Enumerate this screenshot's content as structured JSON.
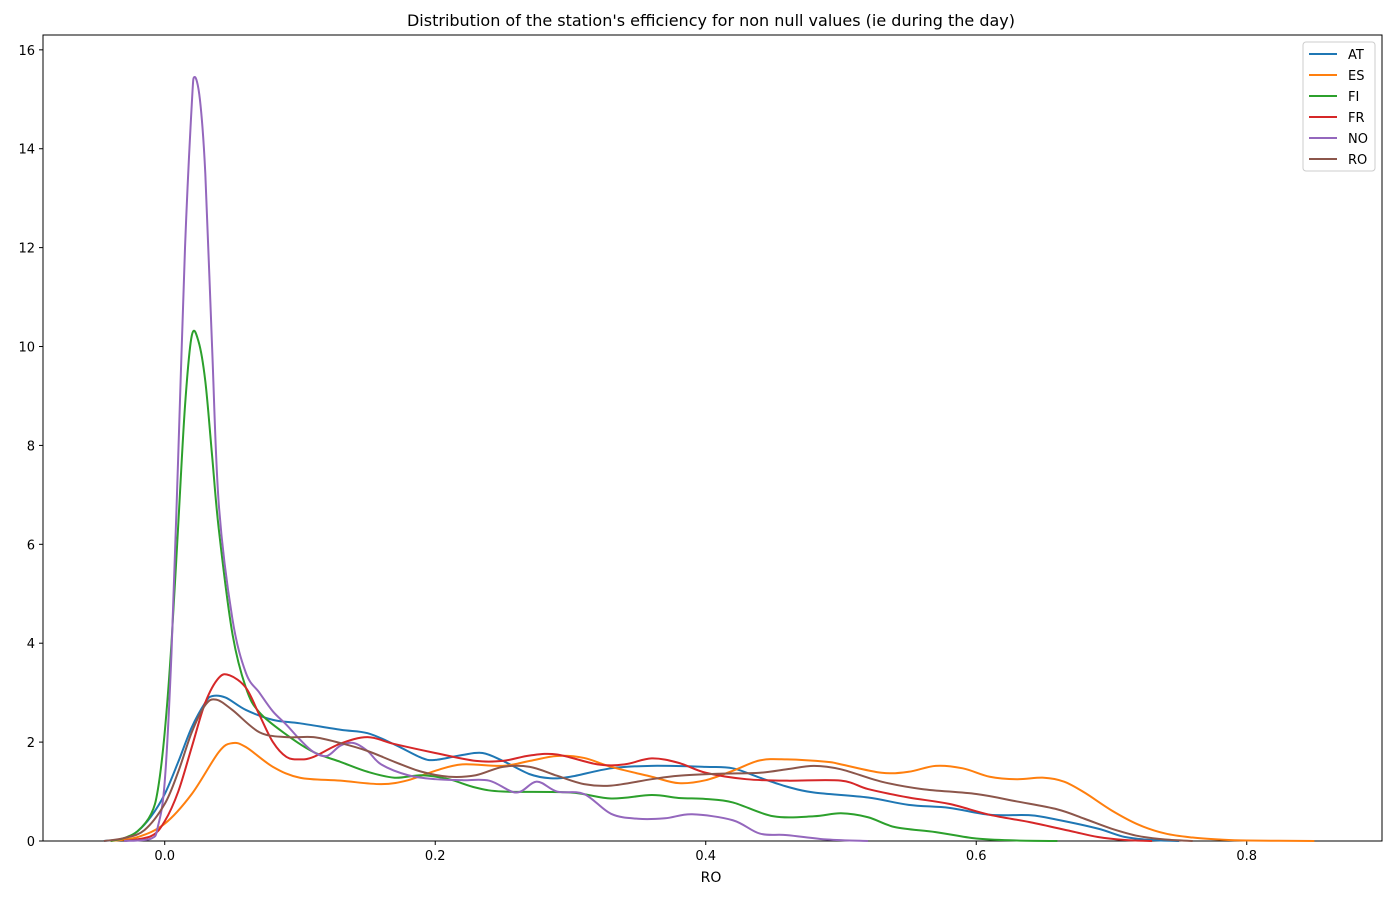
{
  "chart_data": {
    "type": "line",
    "title": "Distribution of the station's efficiency for non null values (ie during the day)",
    "xlabel": "RO",
    "ylabel": "",
    "xlim": [
      -0.09,
      0.9
    ],
    "ylim": [
      0,
      16.3
    ],
    "xticks": [
      0.0,
      0.2,
      0.4,
      0.6,
      0.8
    ],
    "xtick_labels": [
      "0.0",
      "0.2",
      "0.4",
      "0.6",
      "0.8"
    ],
    "yticks": [
      0,
      2,
      4,
      6,
      8,
      10,
      12,
      14,
      16
    ],
    "ytick_labels": [
      "0",
      "2",
      "4",
      "6",
      "8",
      "10",
      "12",
      "14",
      "16"
    ],
    "grid": false,
    "legend_position": "top-right",
    "series": [
      {
        "name": "AT",
        "color": "#1f77b4",
        "points": [
          [
            -0.045,
            0
          ],
          [
            -0.03,
            0.05
          ],
          [
            -0.02,
            0.2
          ],
          [
            -0.01,
            0.5
          ],
          [
            0.0,
            0.95
          ],
          [
            0.01,
            1.6
          ],
          [
            0.02,
            2.3
          ],
          [
            0.03,
            2.8
          ],
          [
            0.035,
            2.93
          ],
          [
            0.045,
            2.9
          ],
          [
            0.06,
            2.65
          ],
          [
            0.08,
            2.45
          ],
          [
            0.1,
            2.38
          ],
          [
            0.13,
            2.25
          ],
          [
            0.15,
            2.18
          ],
          [
            0.17,
            1.95
          ],
          [
            0.19,
            1.68
          ],
          [
            0.2,
            1.64
          ],
          [
            0.22,
            1.74
          ],
          [
            0.235,
            1.78
          ],
          [
            0.25,
            1.62
          ],
          [
            0.27,
            1.35
          ],
          [
            0.285,
            1.27
          ],
          [
            0.3,
            1.3
          ],
          [
            0.33,
            1.47
          ],
          [
            0.36,
            1.52
          ],
          [
            0.4,
            1.5
          ],
          [
            0.42,
            1.47
          ],
          [
            0.44,
            1.28
          ],
          [
            0.46,
            1.1
          ],
          [
            0.48,
            0.98
          ],
          [
            0.52,
            0.88
          ],
          [
            0.55,
            0.73
          ],
          [
            0.58,
            0.67
          ],
          [
            0.61,
            0.53
          ],
          [
            0.64,
            0.52
          ],
          [
            0.66,
            0.43
          ],
          [
            0.69,
            0.25
          ],
          [
            0.71,
            0.08
          ],
          [
            0.73,
            0.02
          ],
          [
            0.75,
            0
          ]
        ]
      },
      {
        "name": "ES",
        "color": "#ff7f0e",
        "points": [
          [
            -0.04,
            0
          ],
          [
            -0.02,
            0.08
          ],
          [
            0.0,
            0.35
          ],
          [
            0.02,
            0.95
          ],
          [
            0.04,
            1.8
          ],
          [
            0.05,
            1.98
          ],
          [
            0.06,
            1.9
          ],
          [
            0.08,
            1.5
          ],
          [
            0.1,
            1.28
          ],
          [
            0.13,
            1.22
          ],
          [
            0.16,
            1.15
          ],
          [
            0.18,
            1.23
          ],
          [
            0.2,
            1.42
          ],
          [
            0.22,
            1.55
          ],
          [
            0.25,
            1.52
          ],
          [
            0.27,
            1.62
          ],
          [
            0.29,
            1.72
          ],
          [
            0.31,
            1.68
          ],
          [
            0.33,
            1.5
          ],
          [
            0.36,
            1.3
          ],
          [
            0.38,
            1.17
          ],
          [
            0.4,
            1.23
          ],
          [
            0.42,
            1.42
          ],
          [
            0.44,
            1.63
          ],
          [
            0.46,
            1.65
          ],
          [
            0.49,
            1.6
          ],
          [
            0.5,
            1.55
          ],
          [
            0.53,
            1.38
          ],
          [
            0.55,
            1.4
          ],
          [
            0.57,
            1.52
          ],
          [
            0.59,
            1.47
          ],
          [
            0.61,
            1.3
          ],
          [
            0.63,
            1.25
          ],
          [
            0.65,
            1.28
          ],
          [
            0.665,
            1.2
          ],
          [
            0.68,
            0.98
          ],
          [
            0.7,
            0.62
          ],
          [
            0.72,
            0.33
          ],
          [
            0.74,
            0.15
          ],
          [
            0.76,
            0.07
          ],
          [
            0.78,
            0.03
          ],
          [
            0.8,
            0.01
          ],
          [
            0.85,
            0
          ]
        ]
      },
      {
        "name": "FI",
        "color": "#2ca02c",
        "points": [
          [
            -0.04,
            0
          ],
          [
            -0.03,
            0.06
          ],
          [
            -0.02,
            0.2
          ],
          [
            -0.01,
            0.55
          ],
          [
            -0.005,
            1.05
          ],
          [
            0.0,
            2.2
          ],
          [
            0.005,
            4.0
          ],
          [
            0.01,
            6.4
          ],
          [
            0.015,
            8.8
          ],
          [
            0.02,
            10.22
          ],
          [
            0.025,
            10.1
          ],
          [
            0.03,
            9.3
          ],
          [
            0.035,
            7.8
          ],
          [
            0.04,
            6.3
          ],
          [
            0.05,
            4.2
          ],
          [
            0.06,
            3.1
          ],
          [
            0.07,
            2.6
          ],
          [
            0.09,
            2.15
          ],
          [
            0.11,
            1.8
          ],
          [
            0.13,
            1.6
          ],
          [
            0.15,
            1.4
          ],
          [
            0.17,
            1.28
          ],
          [
            0.19,
            1.33
          ],
          [
            0.21,
            1.25
          ],
          [
            0.23,
            1.08
          ],
          [
            0.25,
            1.0
          ],
          [
            0.3,
            0.98
          ],
          [
            0.33,
            0.86
          ],
          [
            0.36,
            0.93
          ],
          [
            0.38,
            0.87
          ],
          [
            0.4,
            0.85
          ],
          [
            0.42,
            0.78
          ],
          [
            0.45,
            0.5
          ],
          [
            0.48,
            0.5
          ],
          [
            0.5,
            0.56
          ],
          [
            0.52,
            0.48
          ],
          [
            0.54,
            0.28
          ],
          [
            0.57,
            0.18
          ],
          [
            0.6,
            0.05
          ],
          [
            0.63,
            0.01
          ],
          [
            0.66,
            0
          ]
        ]
      },
      {
        "name": "FR",
        "color": "#d62728",
        "points": [
          [
            -0.03,
            0
          ],
          [
            -0.01,
            0.1
          ],
          [
            0.0,
            0.4
          ],
          [
            0.01,
            1.0
          ],
          [
            0.02,
            1.9
          ],
          [
            0.03,
            2.8
          ],
          [
            0.04,
            3.3
          ],
          [
            0.048,
            3.35
          ],
          [
            0.06,
            3.1
          ],
          [
            0.07,
            2.55
          ],
          [
            0.08,
            2.0
          ],
          [
            0.09,
            1.7
          ],
          [
            0.1,
            1.65
          ],
          [
            0.11,
            1.7
          ],
          [
            0.13,
            1.97
          ],
          [
            0.15,
            2.1
          ],
          [
            0.17,
            1.96
          ],
          [
            0.2,
            1.78
          ],
          [
            0.23,
            1.62
          ],
          [
            0.25,
            1.62
          ],
          [
            0.27,
            1.73
          ],
          [
            0.29,
            1.75
          ],
          [
            0.32,
            1.55
          ],
          [
            0.34,
            1.55
          ],
          [
            0.36,
            1.67
          ],
          [
            0.38,
            1.58
          ],
          [
            0.4,
            1.38
          ],
          [
            0.43,
            1.25
          ],
          [
            0.46,
            1.22
          ],
          [
            0.5,
            1.22
          ],
          [
            0.52,
            1.05
          ],
          [
            0.55,
            0.88
          ],
          [
            0.58,
            0.75
          ],
          [
            0.61,
            0.53
          ],
          [
            0.64,
            0.38
          ],
          [
            0.67,
            0.2
          ],
          [
            0.69,
            0.08
          ],
          [
            0.71,
            0.02
          ],
          [
            0.73,
            0
          ]
        ]
      },
      {
        "name": "NO",
        "color": "#9467bd",
        "points": [
          [
            -0.03,
            0
          ],
          [
            -0.01,
            0.05
          ],
          [
            -0.005,
            0.3
          ],
          [
            0.0,
            1.2
          ],
          [
            0.005,
            3.8
          ],
          [
            0.01,
            7.8
          ],
          [
            0.015,
            12.0
          ],
          [
            0.02,
            14.9
          ],
          [
            0.022,
            15.45
          ],
          [
            0.026,
            15.0
          ],
          [
            0.03,
            13.5
          ],
          [
            0.035,
            10.0
          ],
          [
            0.04,
            6.8
          ],
          [
            0.05,
            4.5
          ],
          [
            0.06,
            3.4
          ],
          [
            0.07,
            3.0
          ],
          [
            0.08,
            2.62
          ],
          [
            0.09,
            2.35
          ],
          [
            0.1,
            2.05
          ],
          [
            0.11,
            1.8
          ],
          [
            0.12,
            1.72
          ],
          [
            0.13,
            1.93
          ],
          [
            0.14,
            1.98
          ],
          [
            0.15,
            1.82
          ],
          [
            0.16,
            1.55
          ],
          [
            0.18,
            1.33
          ],
          [
            0.2,
            1.25
          ],
          [
            0.22,
            1.23
          ],
          [
            0.24,
            1.22
          ],
          [
            0.26,
            0.98
          ],
          [
            0.275,
            1.2
          ],
          [
            0.29,
            1.0
          ],
          [
            0.31,
            0.95
          ],
          [
            0.33,
            0.55
          ],
          [
            0.35,
            0.45
          ],
          [
            0.37,
            0.46
          ],
          [
            0.39,
            0.54
          ],
          [
            0.42,
            0.42
          ],
          [
            0.44,
            0.15
          ],
          [
            0.46,
            0.12
          ],
          [
            0.49,
            0.03
          ],
          [
            0.52,
            0
          ]
        ]
      },
      {
        "name": "RO",
        "color": "#8c564b",
        "points": [
          [
            -0.045,
            0
          ],
          [
            -0.03,
            0.06
          ],
          [
            -0.015,
            0.22
          ],
          [
            0.0,
            0.75
          ],
          [
            0.01,
            1.4
          ],
          [
            0.02,
            2.2
          ],
          [
            0.03,
            2.75
          ],
          [
            0.038,
            2.86
          ],
          [
            0.05,
            2.65
          ],
          [
            0.07,
            2.2
          ],
          [
            0.09,
            2.1
          ],
          [
            0.11,
            2.1
          ],
          [
            0.13,
            1.98
          ],
          [
            0.15,
            1.82
          ],
          [
            0.17,
            1.6
          ],
          [
            0.19,
            1.4
          ],
          [
            0.21,
            1.3
          ],
          [
            0.23,
            1.33
          ],
          [
            0.25,
            1.5
          ],
          [
            0.27,
            1.5
          ],
          [
            0.29,
            1.32
          ],
          [
            0.31,
            1.15
          ],
          [
            0.33,
            1.12
          ],
          [
            0.36,
            1.25
          ],
          [
            0.38,
            1.32
          ],
          [
            0.41,
            1.36
          ],
          [
            0.44,
            1.38
          ],
          [
            0.46,
            1.45
          ],
          [
            0.48,
            1.52
          ],
          [
            0.5,
            1.45
          ],
          [
            0.53,
            1.2
          ],
          [
            0.56,
            1.05
          ],
          [
            0.6,
            0.95
          ],
          [
            0.63,
            0.8
          ],
          [
            0.66,
            0.64
          ],
          [
            0.68,
            0.45
          ],
          [
            0.7,
            0.25
          ],
          [
            0.72,
            0.1
          ],
          [
            0.74,
            0.03
          ],
          [
            0.76,
            0
          ]
        ]
      }
    ]
  }
}
